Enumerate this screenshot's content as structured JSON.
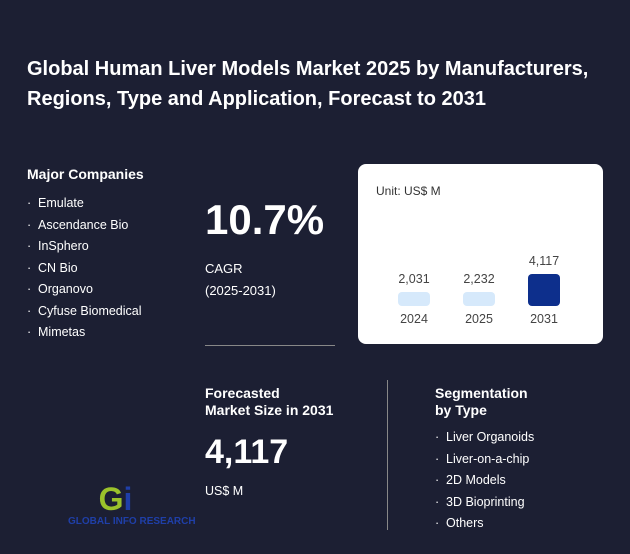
{
  "title": "Global Human Liver Models Market 2025 by Manufacturers, Regions, Type and Application, Forecast to 2031",
  "companies": {
    "heading": "Major Companies",
    "items": [
      "Emulate",
      "Ascendance Bio",
      "InSphero",
      "CN Bio",
      "Organovo",
      "Cyfuse Biomedical",
      "Mimetas"
    ]
  },
  "cagr": {
    "value": "10.7%",
    "label": "CAGR",
    "period": "(2025-2031)"
  },
  "forecast": {
    "heading1": "Forecasted",
    "heading2": "Market Size in 2031",
    "value": "4,117",
    "unit": "US$ M"
  },
  "segmentation": {
    "heading1": "Segmentation",
    "heading2": "by Type",
    "items": [
      "Liver Organoids",
      "Liver-on-a-chip",
      "2D Models",
      "3D Bioprinting",
      "Others"
    ]
  },
  "logo": {
    "text": "GLOBAL INFO RESEARCH",
    "mark": "Gi"
  },
  "chart_data": {
    "type": "bar",
    "unit_label": "Unit: US$ M",
    "categories": [
      "2024",
      "2025",
      "2031"
    ],
    "values": [
      2031,
      2232,
      4117
    ],
    "value_labels": [
      "2,031",
      "2,232",
      "4,117"
    ],
    "colors": [
      "#d6e9fb",
      "#d6e9fb",
      "#0d2f8c"
    ]
  }
}
